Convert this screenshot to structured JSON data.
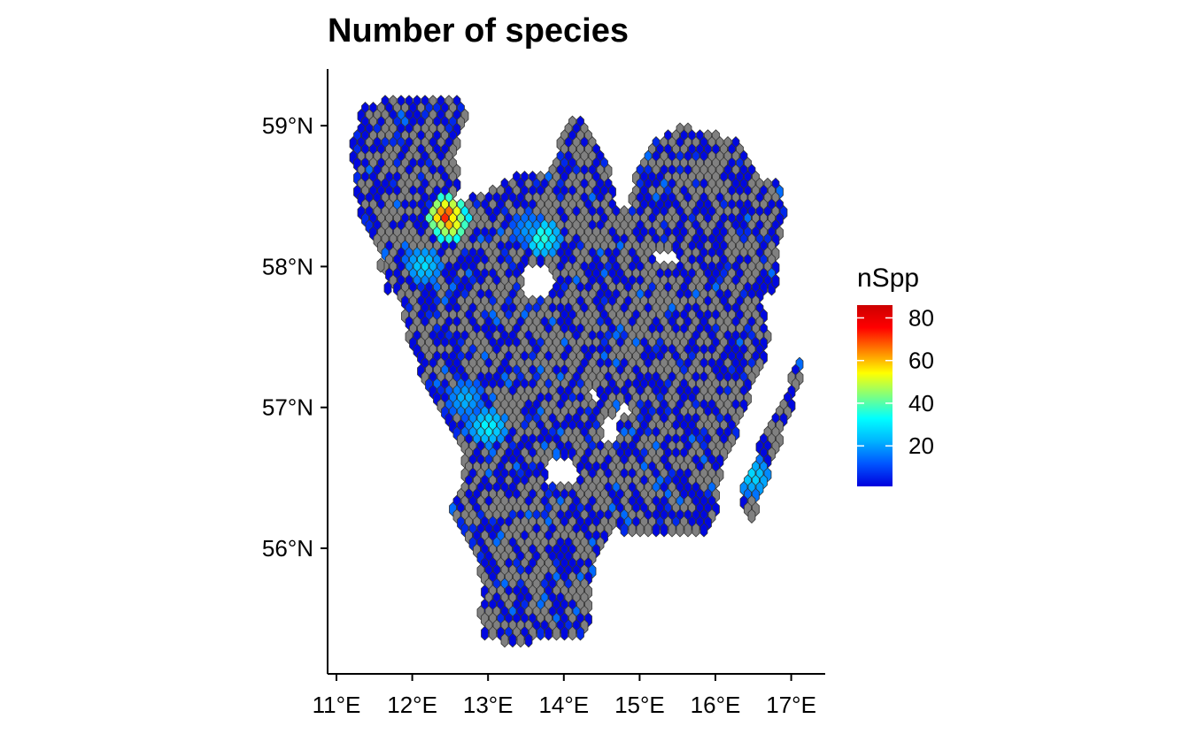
{
  "title": "Number of species",
  "axes": {
    "x_ticks": [
      {
        "value": 11,
        "label": "11°E"
      },
      {
        "value": 12,
        "label": "12°E"
      },
      {
        "value": 13,
        "label": "13°E"
      },
      {
        "value": 14,
        "label": "14°E"
      },
      {
        "value": 15,
        "label": "15°E"
      },
      {
        "value": 16,
        "label": "16°E"
      },
      {
        "value": 17,
        "label": "17°E"
      }
    ],
    "y_ticks": [
      {
        "value": 56,
        "label": "56°N"
      },
      {
        "value": 57,
        "label": "57°N"
      },
      {
        "value": 58,
        "label": "58°N"
      },
      {
        "value": 59,
        "label": "59°N"
      }
    ],
    "xlim": [
      10.9,
      17.4
    ],
    "ylim": [
      55.2,
      59.4
    ]
  },
  "legend": {
    "title": "nSpp",
    "ticks": [
      {
        "value": 20,
        "label": "20"
      },
      {
        "value": 40,
        "label": "40"
      },
      {
        "value": 60,
        "label": "60"
      },
      {
        "value": 80,
        "label": "80"
      }
    ],
    "range": [
      1,
      86
    ],
    "colors": [
      "#0000dd",
      "#0055ff",
      "#00b4ff",
      "#00ffff",
      "#7fff7f",
      "#ffff00",
      "#ff8000",
      "#ff0000",
      "#cc0000"
    ]
  },
  "colors": {
    "no_data": "#808080",
    "hex_outline": "#333333",
    "low_species": "#0000dd"
  },
  "chart_data": {
    "type": "heatmap",
    "title": "Number of species",
    "xlabel": "",
    "ylabel": "",
    "legend_title": "nSpp",
    "grid": false,
    "legend_position": "right",
    "hotspots": [
      {
        "lon": 12.45,
        "lat": 58.35,
        "value": 78
      },
      {
        "lon": 12.5,
        "lat": 58.3,
        "value": 65
      },
      {
        "lon": 13.7,
        "lat": 58.2,
        "value": 40
      },
      {
        "lon": 12.15,
        "lat": 58.0,
        "value": 30
      },
      {
        "lon": 13.0,
        "lat": 56.85,
        "value": 35
      },
      {
        "lon": 16.5,
        "lat": 56.5,
        "value": 30
      },
      {
        "lon": 12.7,
        "lat": 57.05,
        "value": 25
      },
      {
        "lon": 13.55,
        "lat": 58.25,
        "value": 22
      }
    ]
  }
}
